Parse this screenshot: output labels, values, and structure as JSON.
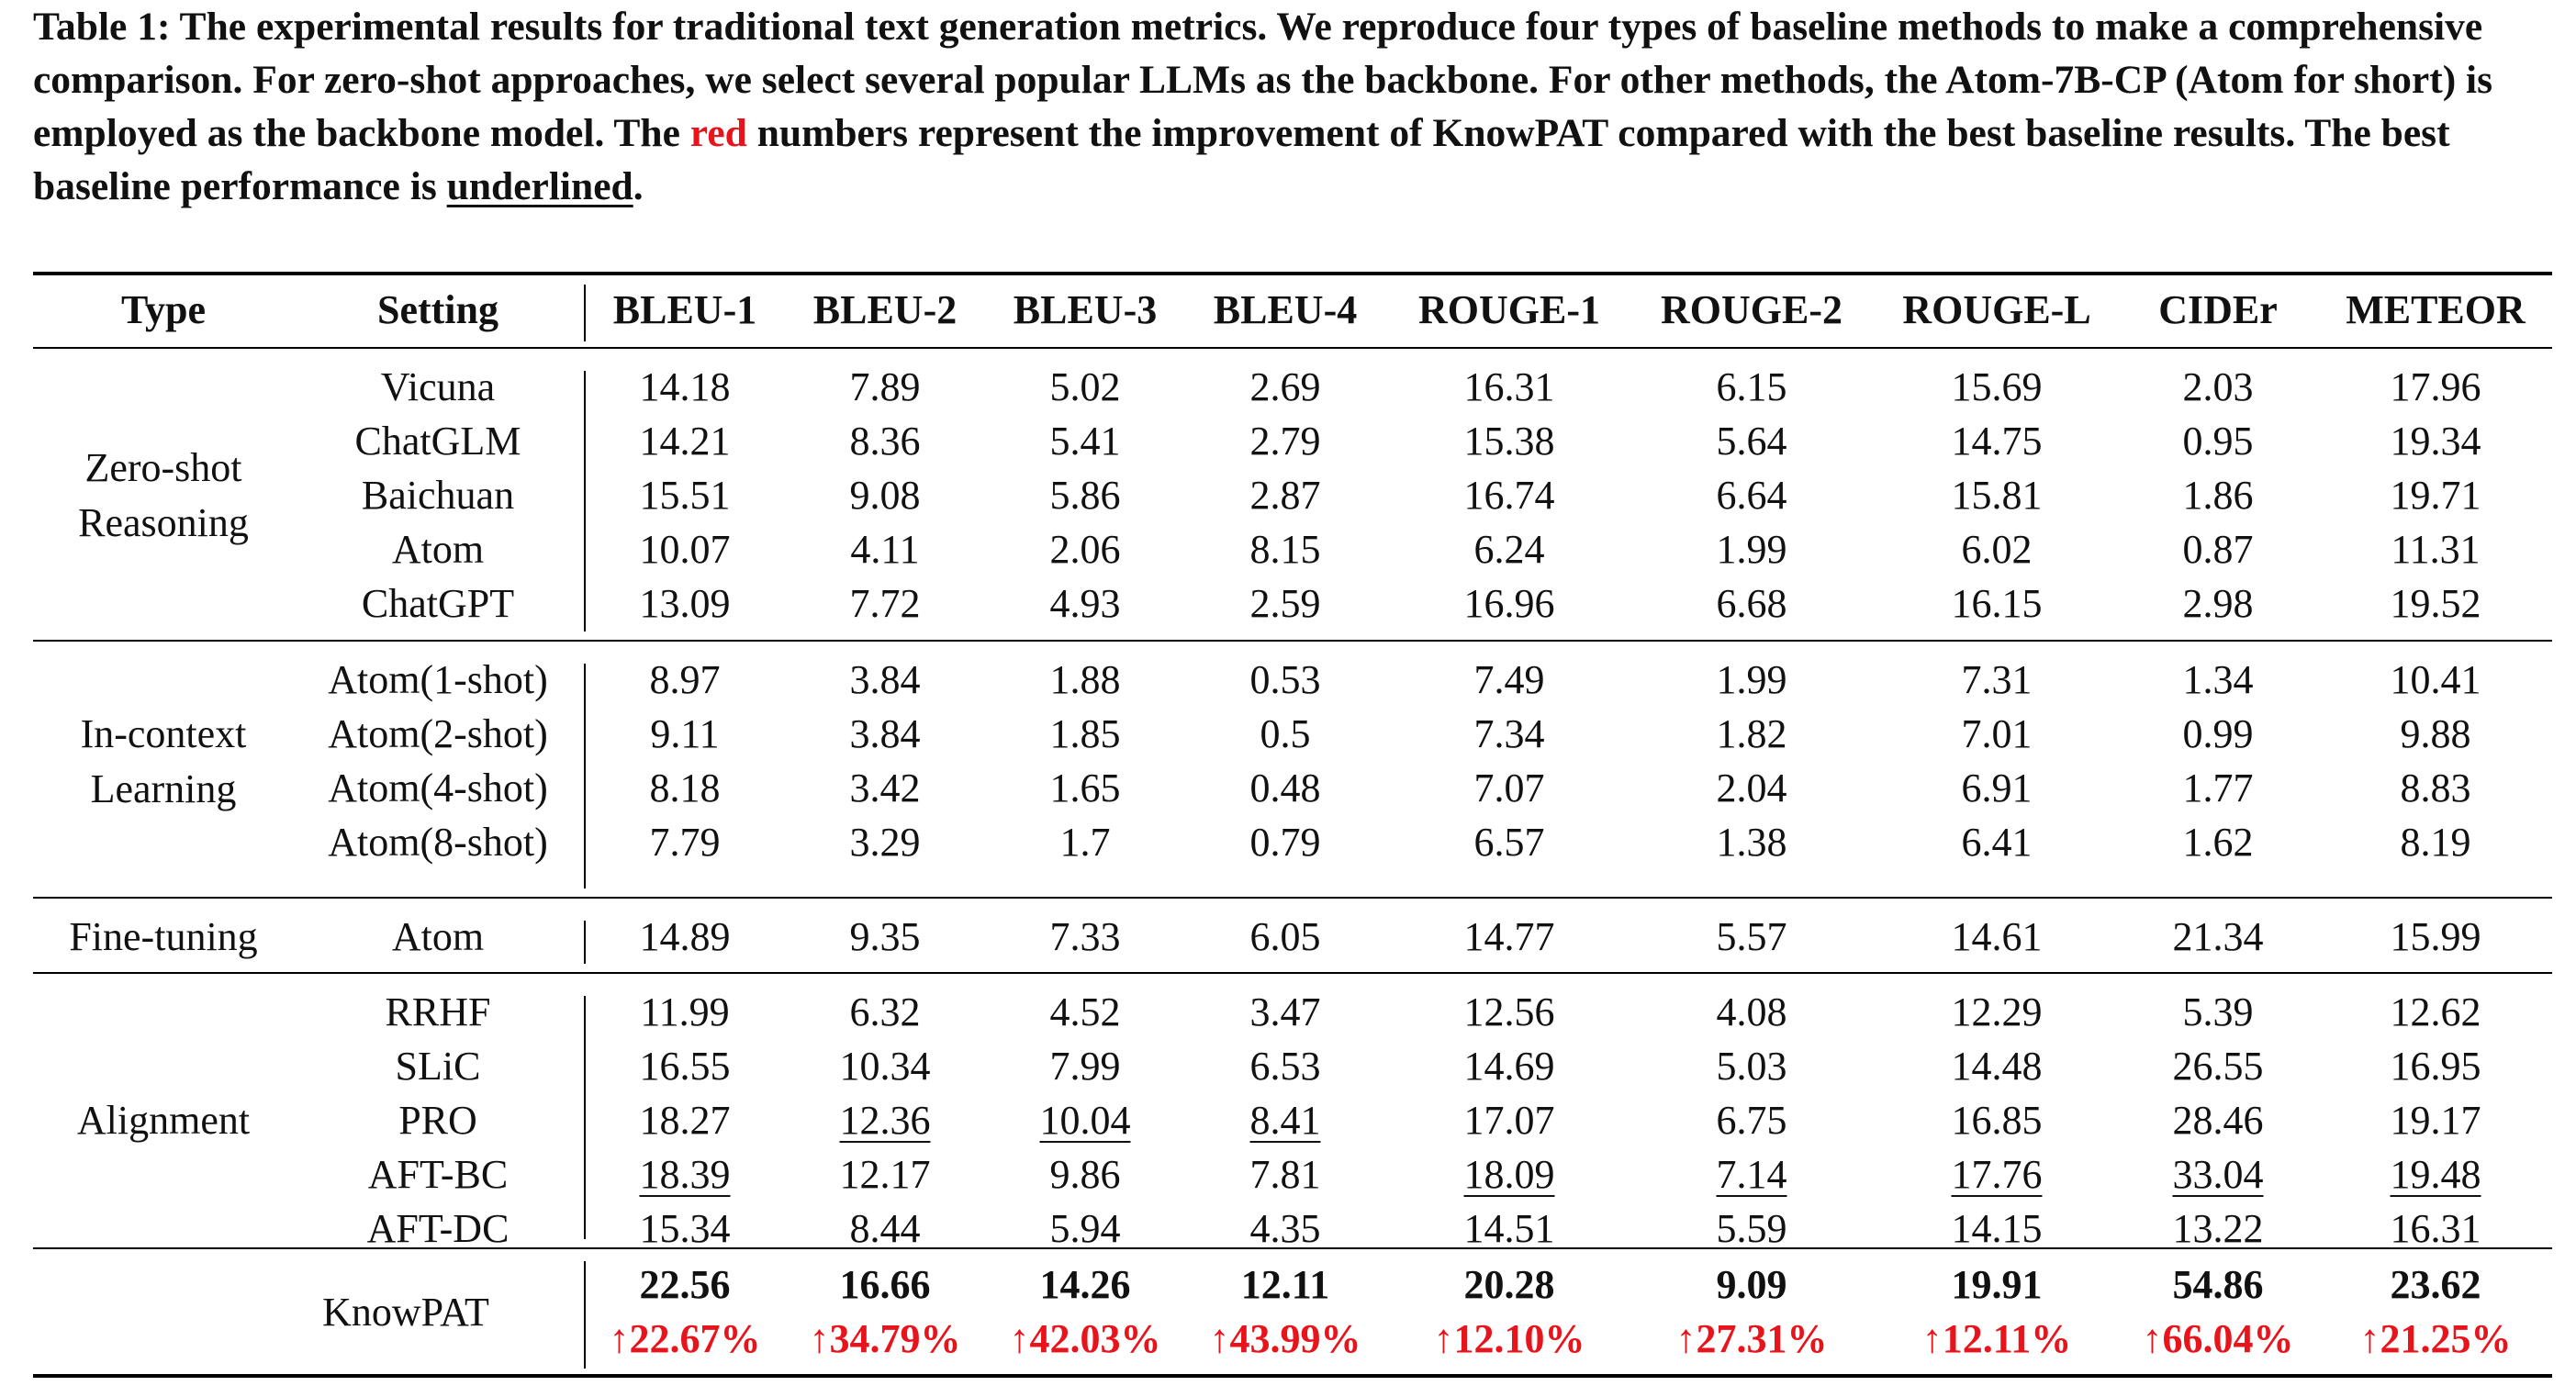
{
  "caption": {
    "part1": "Table 1: The experimental results for traditional text generation metrics. We reproduce four types of baseline methods to make a comprehensive comparison. For zero-shot approaches, we select several popular LLMs as the backbone. For other methods, the Atom-7B-CP (Atom for short) is employed as the backbone model. The ",
    "red_word": "red",
    "part2": " numbers represent the improvement of KnowPAT compared with the best baseline results. The best baseline performance is ",
    "underlined_word": "underlined",
    "part3": "."
  },
  "colors": {
    "improvement": "#e8141c"
  },
  "table": {
    "headers": [
      "Type",
      "Setting",
      "BLEU-1",
      "BLEU-2",
      "BLEU-3",
      "BLEU-4",
      "ROUGE-1",
      "ROUGE-2",
      "ROUGE-L",
      "CIDEr",
      "METEOR"
    ],
    "groups": [
      {
        "type": "Zero-shot\nReasoning",
        "rows": [
          {
            "setting": "Vicuna",
            "values": [
              "14.18",
              "7.89",
              "5.02",
              "2.69",
              "16.31",
              "6.15",
              "15.69",
              "2.03",
              "17.96"
            ],
            "underline": []
          },
          {
            "setting": "ChatGLM",
            "values": [
              "14.21",
              "8.36",
              "5.41",
              "2.79",
              "15.38",
              "5.64",
              "14.75",
              "0.95",
              "19.34"
            ],
            "underline": []
          },
          {
            "setting": "Baichuan",
            "values": [
              "15.51",
              "9.08",
              "5.86",
              "2.87",
              "16.74",
              "6.64",
              "15.81",
              "1.86",
              "19.71"
            ],
            "underline": []
          },
          {
            "setting": "Atom",
            "values": [
              "10.07",
              "4.11",
              "2.06",
              "8.15",
              "6.24",
              "1.99",
              "6.02",
              "0.87",
              "11.31"
            ],
            "underline": []
          },
          {
            "setting": "ChatGPT",
            "values": [
              "13.09",
              "7.72",
              "4.93",
              "2.59",
              "16.96",
              "6.68",
              "16.15",
              "2.98",
              "19.52"
            ],
            "underline": []
          }
        ]
      },
      {
        "type": "In-context\nLearning",
        "rows": [
          {
            "setting": "Atom(1-shot)",
            "values": [
              "8.97",
              "3.84",
              "1.88",
              "0.53",
              "7.49",
              "1.99",
              "7.31",
              "1.34",
              "10.41"
            ],
            "underline": []
          },
          {
            "setting": "Atom(2-shot)",
            "values": [
              "9.11",
              "3.84",
              "1.85",
              "0.5",
              "7.34",
              "1.82",
              "7.01",
              "0.99",
              "9.88"
            ],
            "underline": []
          },
          {
            "setting": "Atom(4-shot)",
            "values": [
              "8.18",
              "3.42",
              "1.65",
              "0.48",
              "7.07",
              "2.04",
              "6.91",
              "1.77",
              "8.83"
            ],
            "underline": []
          },
          {
            "setting": "Atom(8-shot)",
            "values": [
              "7.79",
              "3.29",
              "1.7",
              "0.79",
              "6.57",
              "1.38",
              "6.41",
              "1.62",
              "8.19"
            ],
            "underline": []
          }
        ]
      },
      {
        "type": "Fine-tuning",
        "rows": [
          {
            "setting": "Atom",
            "values": [
              "14.89",
              "9.35",
              "7.33",
              "6.05",
              "14.77",
              "5.57",
              "14.61",
              "21.34",
              "15.99"
            ],
            "underline": []
          }
        ]
      },
      {
        "type": "Alignment",
        "rows": [
          {
            "setting": "RRHF",
            "values": [
              "11.99",
              "6.32",
              "4.52",
              "3.47",
              "12.56",
              "4.08",
              "12.29",
              "5.39",
              "12.62"
            ],
            "underline": []
          },
          {
            "setting": "SLiC",
            "values": [
              "16.55",
              "10.34",
              "7.99",
              "6.53",
              "14.69",
              "5.03",
              "14.48",
              "26.55",
              "16.95"
            ],
            "underline": []
          },
          {
            "setting": "PRO",
            "values": [
              "18.27",
              "12.36",
              "10.04",
              "8.41",
              "17.07",
              "6.75",
              "16.85",
              "28.46",
              "19.17"
            ],
            "underline": [
              1,
              2,
              3
            ]
          },
          {
            "setting": "AFT-BC",
            "values": [
              "18.39",
              "12.17",
              "9.86",
              "7.81",
              "18.09",
              "7.14",
              "17.76",
              "33.04",
              "19.48"
            ],
            "underline": [
              0,
              4,
              5,
              6,
              7,
              8
            ]
          },
          {
            "setting": "AFT-DC",
            "values": [
              "15.34",
              "8.44",
              "5.94",
              "4.35",
              "14.51",
              "5.59",
              "14.15",
              "13.22",
              "16.31"
            ],
            "underline": []
          }
        ]
      }
    ],
    "knowpat": {
      "label": "KnowPAT",
      "values": [
        "22.56",
        "16.66",
        "14.26",
        "12.11",
        "20.28",
        "9.09",
        "19.91",
        "54.86",
        "23.62"
      ],
      "improvements": [
        "↑22.67%",
        "↑34.79%",
        "↑42.03%",
        "↑43.99%",
        "↑12.10%",
        "↑27.31%",
        "↑12.11%",
        "↑66.04%",
        "↑21.25%"
      ]
    }
  }
}
